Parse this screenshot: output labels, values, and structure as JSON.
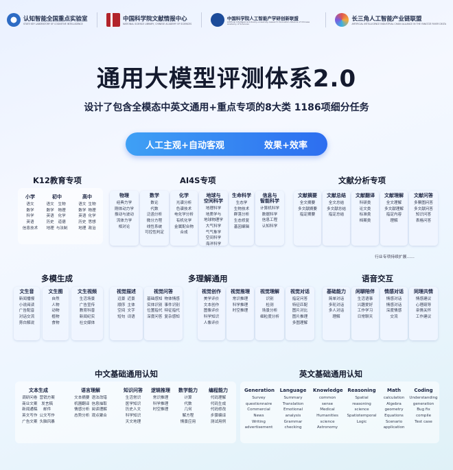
{
  "header": {
    "orgs": [
      {
        "name": "认知智能全国重点实验室",
        "sub": "STATE KEY LABORATORY OF COGNITIVE INTELLIGENCE",
        "color": "#2e6cc4"
      },
      {
        "name": "中国科学院文献情报中心",
        "sub": "NATIONAL SCIENCE LIBRARY, CHINESE ACADEMY OF SCIENCES",
        "color": "#b2242b"
      },
      {
        "name": "中国科学院人工智能产学研创新联盟",
        "sub": "Artificial Intelligence Industry-university-research Innovation Alliance of Chinese Academy of Sciences",
        "color": "#1c4b9a"
      },
      {
        "name": "长三角人工智能产业链联盟",
        "sub": "ARTIFICIAL INTELLIGENCE INDUSTRIAL CHAIN ALLIANCE IN THE YANGTZE RIVER DELTA",
        "color": "#e0574f"
      }
    ]
  },
  "title": "通用大模型评测体系2.0",
  "subtitle": "设计了包含全模态中英文通用+重点专项的8大类 1186项细分任务",
  "pill": {
    "left": "人工主观+自动客观",
    "right": "效果+效率"
  },
  "sections": {
    "k12": "K12教育专项",
    "ai4s": "AI4S专项",
    "doc": "文献分析专项",
    "multigen": "多模生成",
    "multiund": "多理解通用",
    "speech": "语音交互",
    "zh": "中文基础通用认知",
    "en": "英文基础通用认知"
  },
  "note": "行业专项持续扩展……",
  "k12": [
    {
      "title": "小学",
      "cols": [
        [
          "语文",
          "数学",
          "科学",
          "英语",
          "信息技术"
        ]
      ]
    },
    {
      "title": "初中",
      "cols": [
        [
          "语文",
          "数学",
          "英语",
          "历史",
          "地理"
        ],
        [
          "生物",
          "物理",
          "化学",
          "道德",
          "与法制"
        ]
      ]
    },
    {
      "title": "高中",
      "cols": [
        [
          "语文",
          "数学",
          "英语",
          "历史",
          "地理"
        ],
        [
          "生物",
          "物理",
          "化学",
          "思想",
          "政治"
        ]
      ]
    }
  ],
  "ai4s": [
    {
      "title": "物理",
      "items": [
        "经典力学",
        "刚体动力学",
        "振动与波动",
        "流体力学",
        "相对论"
      ]
    },
    {
      "title": "数学",
      "items": [
        "数论",
        "代数",
        "泛函分析",
        "微分方程",
        "线性系统",
        "可控性判定"
      ]
    },
    {
      "title": "化学",
      "items": [
        "光谱分析",
        "色谱技术",
        "电化学分析",
        "有机化学",
        "金属配合物",
        "合成"
      ]
    },
    {
      "title": "地球与\n空间科学",
      "items": [
        "地理科学",
        "地质学与",
        "地球物理学",
        "大气科学",
        "气气象学",
        "空间科学",
        "海洋科学"
      ]
    },
    {
      "title": "生命科学",
      "items": [
        "生态学",
        "生物技术",
        "群落分析",
        "生态修复",
        "基因编辑"
      ]
    },
    {
      "title": "信息与\n智能科学",
      "items": [
        "计算机科学",
        "数据科学",
        "信息工程",
        "认知科学"
      ]
    }
  ],
  "doc": [
    {
      "title": "文献摘要",
      "items": [
        "全文摘要",
        "多文献摘要",
        "指定摘要"
      ]
    },
    {
      "title": "文献总结",
      "items": [
        "全文总结",
        "多文献总结",
        "指定总结"
      ]
    },
    {
      "title": "文献翻译",
      "items": [
        "科研类",
        "论文类",
        "标准类",
        "档案类"
      ]
    },
    {
      "title": "文献理解",
      "items": [
        "全文理解",
        "多文献理解",
        "指定内容",
        "理解"
      ]
    },
    {
      "title": "文献问答",
      "items": [
        "多票图问答",
        "多文献问答",
        "知识问答",
        "表格问答"
      ]
    }
  ],
  "multigen": [
    {
      "title": "文生音",
      "items": [
        "新闻播报",
        "小说阅读",
        "广告配音",
        "对话交流",
        "旁白解说"
      ]
    },
    {
      "title": "文生图",
      "items": [
        "自然",
        "人物",
        "动物",
        "植物",
        "食物"
      ]
    },
    {
      "title": "文生视频",
      "items": [
        "生活场景",
        "广告宣传",
        "教育科普",
        "新闻纪实",
        "社交媒体"
      ]
    }
  ],
  "multiund": [
    {
      "title": "视觉描述",
      "cols": [
        [
          "远景",
          "顺序",
          "空间",
          "短句"
        ],
        [
          "近景",
          "主体",
          "文字",
          "词语"
        ]
      ]
    },
    {
      "title": "视觉问答",
      "cols": [
        [
          "基础感知",
          "实体识别",
          "位置指代",
          "深度问答"
        ],
        [
          "物体情感",
          "事件识别",
          "特征指代",
          "复杂感知"
        ]
      ]
    },
    {
      "title": "视觉创作",
      "items": [
        "美学评价",
        "文本创作",
        "图像评价",
        "科学知识",
        "人像评价"
      ]
    },
    {
      "title": "视觉推理",
      "items": [
        "常识推理",
        "科学推理",
        "时空推理"
      ]
    },
    {
      "title": "视觉理解",
      "items": [
        "识别",
        "检测",
        "场景分析",
        "细粒度分析"
      ]
    },
    {
      "title": "视觉对话",
      "items": [
        "指定问答",
        "特征匹配",
        "图片对比",
        "图片推理",
        "多图理解"
      ]
    }
  ],
  "speech": [
    {
      "title": "基础能力",
      "items": [
        "简单对话",
        "多轮对话",
        "多人对话",
        "理解"
      ]
    },
    {
      "title": "闲聊陪伴",
      "items": [
        "生活语事",
        "兴趣爱好",
        "工作学习",
        "日常聊天"
      ]
    },
    {
      "title": "情感对话",
      "items": [
        "情感对话",
        "情感对话",
        "深度情感",
        "交流"
      ]
    },
    {
      "title": "同理共情",
      "items": [
        "情感建议",
        "心理疏导",
        "亲情关怀",
        "工作建议"
      ]
    }
  ],
  "zh": [
    {
      "title": "文本生成",
      "cols": [
        [
          "调研问卷",
          "商业文案",
          "新闻通稿",
          "英文写作",
          "广告文案"
        ],
        [
          "营销方案",
          "发言稿",
          "邮件",
          "公文写作",
          "头脑风暴"
        ]
      ]
    },
    {
      "title": "语言理解",
      "cols": [
        [
          "文本摘要",
          "机器翻译",
          "情感分析",
          "态势分析"
        ],
        [
          "语法改错",
          "信息抽取",
          "阅读理解",
          "观点聚合"
        ]
      ]
    },
    {
      "title": "知识问答",
      "items": [
        "生活常识",
        "医学知识",
        "历史人文",
        "科学知识",
        "天文地理"
      ]
    },
    {
      "title": "逻辑推理",
      "items": [
        "常识推理",
        "科学推理",
        "时空推理"
      ]
    },
    {
      "title": "数学能力",
      "items": [
        "计算",
        "代数",
        "几何",
        "解方程",
        "情景应用"
      ]
    },
    {
      "title": "编程能力",
      "items": [
        "代码理解",
        "代码生成",
        "代码修改",
        "步骤编译",
        "测试用例"
      ]
    }
  ],
  "en": [
    {
      "title": "Generation",
      "items": [
        "Survey",
        "questionnaire",
        "Commercial",
        "News",
        "Writing",
        "advertisement"
      ]
    },
    {
      "title": "Language",
      "items": [
        "Summary",
        "Translation",
        "Emotional",
        "analysis",
        "Grammar",
        "checking"
      ]
    },
    {
      "title": "Knowledge",
      "items": [
        "common sense",
        "Medical",
        "Humanities",
        "science",
        "Astronomy"
      ]
    },
    {
      "title": "Reasoning",
      "items": [
        "Spatial reasoning",
        "science",
        "Spatiotemporal",
        "Logic"
      ]
    },
    {
      "title": "Math",
      "items": [
        "calculation",
        "Algebra",
        "geometry",
        "Equations",
        "Scenario",
        "application"
      ]
    },
    {
      "title": "Coding",
      "items": [
        "Understanding",
        "generation",
        "Bug fix",
        "compile",
        "Test case"
      ]
    }
  ]
}
